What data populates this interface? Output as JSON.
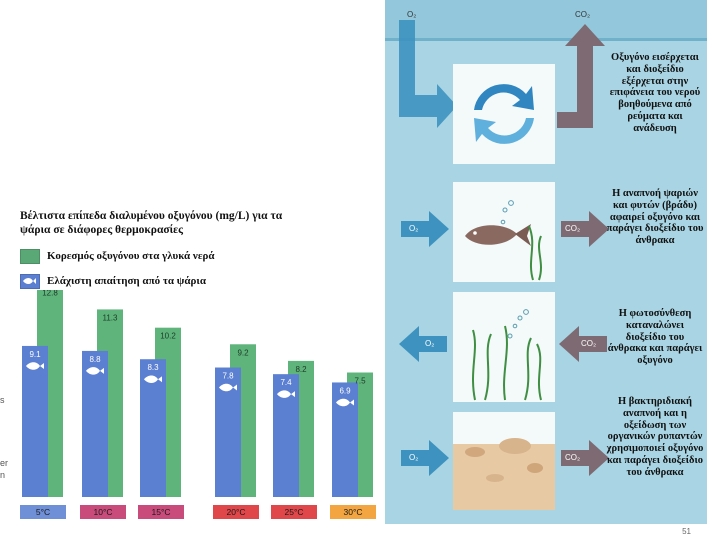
{
  "chart": {
    "title": "Βέλτιστα επίπεδα διαλυμένου οξυγόνου (mg/L) για τα ψάρια σε διάφορες θερμοκρασίες",
    "legend": [
      {
        "label": "Κορεσμός οξυγόνου στα γλυκά νερά",
        "color": "#5ba877"
      },
      {
        "label": "Ελάχιστη απαίτηση  από τα ψάρια",
        "color": "#5b7fd1"
      }
    ],
    "edge_text": [
      "s",
      "er",
      "n"
    ]
  },
  "chart_data": {
    "type": "bar",
    "categories": [
      "5°C",
      "10°C",
      "15°C",
      "20°C",
      "25°C",
      "30°C"
    ],
    "category_colors": [
      "#6f8fd6",
      "#c94b7b",
      "#c94b7b",
      "#e0474a",
      "#e0474a",
      "#f2a540"
    ],
    "series": [
      {
        "name": "Κορεσμός οξυγόνου στα γλυκά νερά",
        "values": [
          12.8,
          11.3,
          10.2,
          9.2,
          8.2,
          7.5
        ],
        "color": "#5fb47c"
      },
      {
        "name": "Ελάχιστη απαίτηση  από τα ψάρια",
        "values": [
          9.1,
          8.8,
          8.3,
          7.8,
          7.4,
          6.9
        ],
        "color": "#5b7fd1"
      }
    ],
    "value_labels": [
      "12.8",
      "11.3",
      "10.2",
      "9.2",
      "8.2",
      "7.5",
      "9.1",
      "8.8",
      "8.3",
      "7.8",
      "7.4",
      "6.9"
    ]
  },
  "diagram": {
    "top_labels": {
      "o2": "O₂",
      "co2": "CO₂"
    },
    "arrow_labels": [
      "O₂",
      "CO₂",
      "O₂",
      "CO₂",
      "O₂",
      "CO₂"
    ],
    "texts": [
      "Οξυγόνο εισέρχεται και διοξείδιο εξέρχεται στην επιφάνεια του νερού βοηθούμενα από ρεύματα και ανάδευση",
      "Η αναπνοή ψαριών και φυτών (βράδυ) αφαιρεί οξυγόνο και παράγει διοξείδιο του άνθρακα",
      "Η φωτοσύνθεση καταναλώνει διοξείδιο του άνθρακα και παράγει οξυγόνο",
      "Η βακτηριδιακή αναπνοή και η οξείδωση των οργανικών ρυπαντών χρησιμοποιεί οξυγόνο και παράγει διοξείδιο του άνθρακα"
    ],
    "page_number": "51"
  }
}
